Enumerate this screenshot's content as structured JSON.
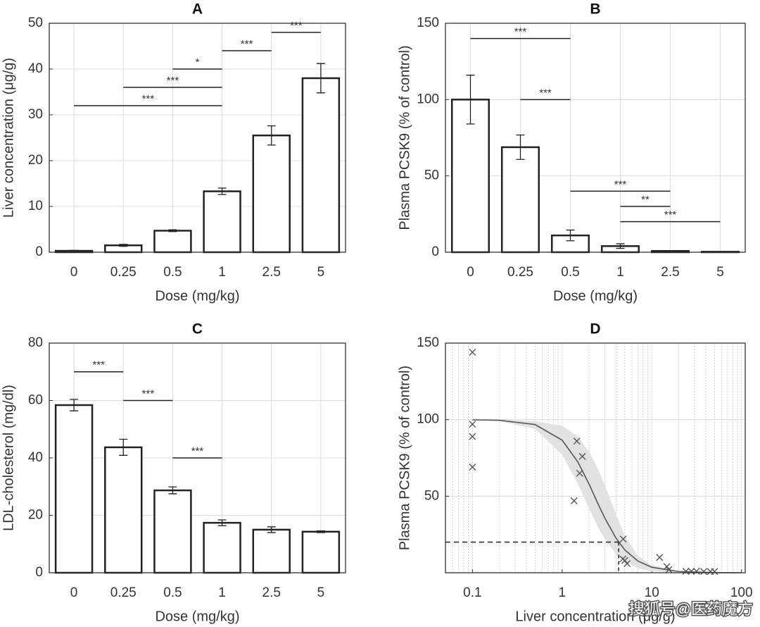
{
  "chart_data": [
    {
      "type": "bar",
      "title": "A",
      "xlabel": "Dose (mg/kg)",
      "ylabel": "Liver concentration (μg/g)",
      "categories": [
        "0",
        "0.25",
        "0.5",
        "1",
        "2.5",
        "5"
      ],
      "values": [
        0.3,
        1.5,
        4.7,
        13.3,
        25.5,
        38
      ],
      "errors": [
        0.1,
        0.2,
        0.2,
        0.7,
        2.1,
        3.2
      ],
      "ylim": [
        0,
        50
      ],
      "yticks": [
        0,
        10,
        20,
        30,
        40,
        50
      ],
      "grid": true,
      "bar_fill": "#ffffff",
      "edge_color": "#222222",
      "significance": [
        {
          "between": [
            "0",
            "1"
          ],
          "y": 32,
          "label": "***"
        },
        {
          "between": [
            "0.25",
            "1"
          ],
          "y": 36,
          "label": "***"
        },
        {
          "between": [
            "0.5",
            "1"
          ],
          "y": 40,
          "label": "*"
        },
        {
          "between": [
            "1",
            "2.5"
          ],
          "y": 44,
          "label": "***"
        },
        {
          "between": [
            "2.5",
            "5"
          ],
          "y": 48,
          "label": "***"
        }
      ]
    },
    {
      "type": "bar",
      "title": "B",
      "xlabel": "Dose (mg/kg)",
      "ylabel": "Plasma PCSK9 (% of control)",
      "categories": [
        "0",
        "0.25",
        "0.5",
        "1",
        "2.5",
        "5"
      ],
      "values": [
        100,
        68.8,
        11,
        4,
        0.8,
        0.3
      ],
      "errors": [
        16,
        8,
        3.5,
        1.5,
        0.3,
        0.1
      ],
      "ylim": [
        0,
        150
      ],
      "yticks": [
        0,
        50,
        100,
        150
      ],
      "grid": true,
      "bar_fill": "#ffffff",
      "edge_color": "#222222",
      "significance": [
        {
          "between": [
            "0",
            "0.5"
          ],
          "y": 140,
          "label": "***"
        },
        {
          "between": [
            "0.25",
            "0.5"
          ],
          "y": 100,
          "label": "***"
        },
        {
          "between": [
            "0.5",
            "2.5"
          ],
          "y": 40,
          "label": "***"
        },
        {
          "between": [
            "1",
            "2.5"
          ],
          "y": 30,
          "label": "**"
        },
        {
          "between": [
            "1",
            "5"
          ],
          "y": 20,
          "label": "***"
        }
      ]
    },
    {
      "type": "bar",
      "title": "C",
      "xlabel": "Dose (mg/kg)",
      "ylabel": "LDL-cholesterol (mg/dl)",
      "categories": [
        "0",
        "0.25",
        "0.5",
        "1",
        "2.5",
        "5"
      ],
      "values": [
        58.4,
        43.7,
        28.7,
        17.4,
        15,
        14.3
      ],
      "errors": [
        2,
        2.8,
        1.2,
        1,
        1,
        0.3
      ],
      "ylim": [
        0,
        80
      ],
      "yticks": [
        0,
        20,
        40,
        60,
        80
      ],
      "grid": true,
      "bar_fill": "#ffffff",
      "edge_color": "#222222",
      "significance": [
        {
          "between": [
            "0",
            "0.25"
          ],
          "y": 70,
          "label": "***"
        },
        {
          "between": [
            "0.25",
            "0.5"
          ],
          "y": 60,
          "label": "***"
        },
        {
          "between": [
            "0.5",
            "1"
          ],
          "y": 40,
          "label": "***"
        }
      ]
    },
    {
      "type": "scatter",
      "title": "D",
      "xlabel": "Liver concentration (μg/g)",
      "ylabel": "Plasma PCSK9 (% of control)",
      "log_x": true,
      "xlim": [
        0.05,
        110
      ],
      "xticks": [
        0.1,
        1,
        10,
        100
      ],
      "ylim": [
        0,
        150
      ],
      "yticks": [
        50,
        100,
        150
      ],
      "grid": true,
      "minor_grid": true,
      "marker_color": "#555555",
      "x": [
        0.1,
        0.1,
        0.1,
        0.1,
        1.46,
        1.68,
        1.57,
        1.36,
        4.8,
        5.0,
        5.3,
        4.75,
        12.2,
        14.7,
        15.5,
        24,
        27.5,
        31.5,
        38,
        45,
        50
      ],
      "y": [
        144,
        97,
        89,
        69,
        86,
        76,
        65,
        47,
        22,
        8,
        6,
        9,
        10,
        4,
        2,
        1,
        1,
        1,
        0.8,
        0.8,
        0.8
      ],
      "fit": {
        "color": "#555555",
        "band_color": "#e2e2e2",
        "x": [
          0.1,
          0.2,
          0.5,
          1,
          1.5,
          2,
          2.5,
          3,
          4,
          5,
          7,
          10,
          20,
          50,
          100
        ],
        "y": [
          99.9,
          99.6,
          96.8,
          86.6,
          72.3,
          57.8,
          45.3,
          35.6,
          22.5,
          14.9,
          7.6,
          3.6,
          0.8,
          0.1,
          0
        ],
        "ci_upper": [
          100,
          99.9,
          99,
          96,
          89,
          79,
          68,
          57,
          38,
          24,
          11,
          5,
          1,
          0.2,
          0
        ],
        "ci_lower": [
          99.8,
          99,
          94,
          77,
          58,
          42,
          30,
          22,
          12,
          7,
          3,
          1,
          0.1,
          0,
          0
        ]
      },
      "reference": {
        "x": 4.27,
        "y": 20
      }
    }
  ],
  "watermark": "搜狐号@医药魔方"
}
